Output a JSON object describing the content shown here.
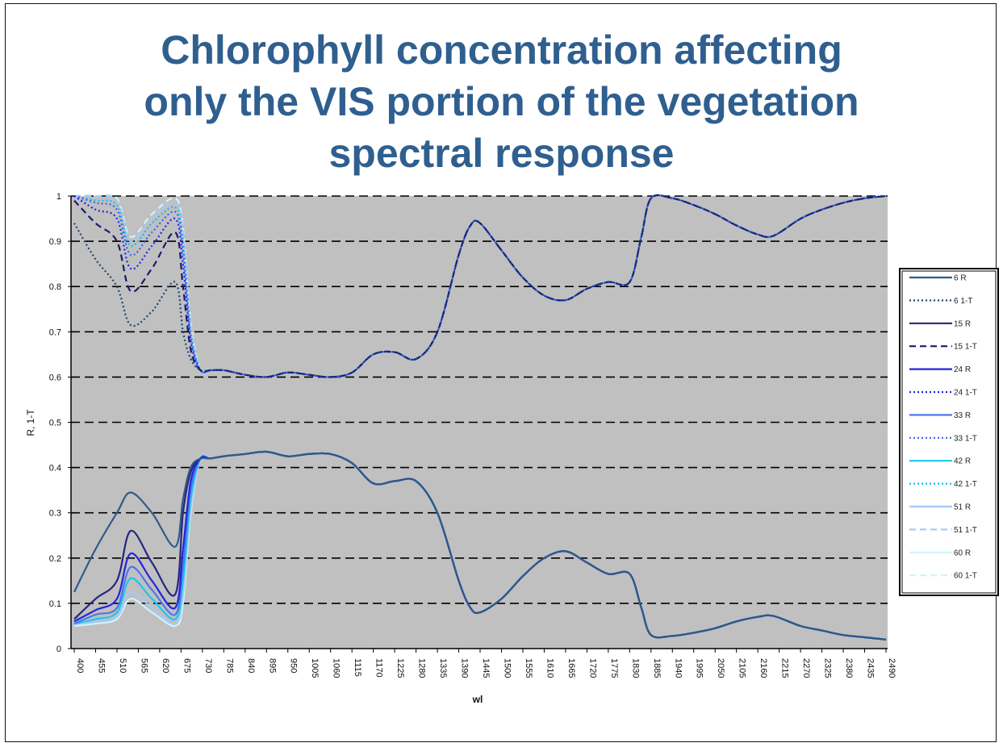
{
  "title_lines": [
    "Chlorophyll concentration affecting",
    "only the VIS portion of the vegetation",
    "spectral response"
  ],
  "chart_data": {
    "type": "line",
    "title": "Chlorophyll concentration affecting only the VIS portion of the vegetation spectral response",
    "xlabel": "wl",
    "ylabel": "R, 1-T",
    "xlim": [
      400,
      2490
    ],
    "ylim": [
      0,
      1
    ],
    "yticks": [
      "0",
      "0.1",
      "0.2",
      "0.3",
      "0.4",
      "0.5",
      "0.6",
      "0.7",
      "0.8",
      "0.9",
      "1"
    ],
    "xticks": [
      "400",
      "455",
      "510",
      "565",
      "620",
      "675",
      "730",
      "785",
      "840",
      "895",
      "950",
      "1005",
      "1060",
      "1115",
      "1170",
      "1225",
      "1280",
      "1335",
      "1390",
      "1445",
      "1500",
      "1555",
      "1610",
      "1665",
      "1720",
      "1775",
      "1830",
      "1885",
      "1940",
      "1995",
      "2050",
      "2105",
      "2160",
      "2215",
      "2270",
      "2325",
      "2380",
      "2435",
      "2490"
    ],
    "grid": "horizontal dashed",
    "legend_position": "right",
    "vis_x": [
      400,
      455,
      510,
      545,
      600,
      660,
      680,
      700,
      725
    ],
    "tail_x": [
      750,
      785,
      840,
      895,
      950,
      1005,
      1060,
      1115,
      1170,
      1225,
      1280,
      1335,
      1390,
      1420,
      1445,
      1500,
      1555,
      1610,
      1665,
      1720,
      1775,
      1830,
      1860,
      1885,
      1940,
      1995,
      2050,
      2105,
      2160,
      2200,
      2270,
      2325,
      2380,
      2435,
      2490
    ],
    "tail_R": [
      0.42,
      0.425,
      0.43,
      0.435,
      0.425,
      0.43,
      0.43,
      0.41,
      0.365,
      0.37,
      0.37,
      0.3,
      0.15,
      0.09,
      0.08,
      0.11,
      0.16,
      0.2,
      0.215,
      0.19,
      0.165,
      0.165,
      0.09,
      0.03,
      0.028,
      0.035,
      0.045,
      0.06,
      0.07,
      0.072,
      0.05,
      0.04,
      0.03,
      0.025,
      0.02
    ],
    "tail_1T": [
      0.615,
      0.615,
      0.605,
      0.6,
      0.61,
      0.605,
      0.6,
      0.61,
      0.65,
      0.655,
      0.64,
      0.7,
      0.87,
      0.935,
      0.94,
      0.88,
      0.82,
      0.78,
      0.77,
      0.795,
      0.81,
      0.81,
      0.91,
      0.995,
      0.995,
      0.98,
      0.96,
      0.935,
      0.915,
      0.912,
      0.95,
      0.97,
      0.985,
      0.995,
      1.0
    ],
    "series": [
      {
        "name": "6 R",
        "kind": "R",
        "color": "#2f5a8a",
        "dash": "solid",
        "vis": [
          0.125,
          0.22,
          0.3,
          0.345,
          0.3,
          0.225,
          0.33,
          0.4,
          0.42
        ]
      },
      {
        "name": "6 1-T",
        "kind": "T",
        "color": "#1d4670",
        "dash": "dotted",
        "vis": [
          0.94,
          0.86,
          0.8,
          0.715,
          0.745,
          0.81,
          0.7,
          0.64,
          0.615
        ]
      },
      {
        "name": "15 R",
        "kind": "R",
        "color": "#26267e",
        "dash": "solid",
        "vis": [
          0.065,
          0.11,
          0.15,
          0.26,
          0.19,
          0.12,
          0.3,
          0.39,
          0.42
        ]
      },
      {
        "name": "15 1-T",
        "kind": "T",
        "color": "#1a1a70",
        "dash": "dashed",
        "vis": [
          0.99,
          0.94,
          0.9,
          0.79,
          0.84,
          0.92,
          0.8,
          0.66,
          0.615
        ]
      },
      {
        "name": "24 R",
        "kind": "R",
        "color": "#2323e0",
        "dash": "solid",
        "vis": [
          0.06,
          0.085,
          0.11,
          0.21,
          0.15,
          0.09,
          0.22,
          0.37,
          0.42
        ]
      },
      {
        "name": "24 1-T",
        "kind": "T",
        "color": "#2323e8",
        "dash": "dotted",
        "vis": [
          1.0,
          0.97,
          0.95,
          0.84,
          0.89,
          0.95,
          0.85,
          0.68,
          0.615
        ]
      },
      {
        "name": "33 R",
        "kind": "R",
        "color": "#4a78e8",
        "dash": "solid",
        "vis": [
          0.055,
          0.075,
          0.09,
          0.18,
          0.13,
          0.075,
          0.18,
          0.35,
          0.42
        ]
      },
      {
        "name": "33 1-T",
        "kind": "T",
        "color": "#3a66f0",
        "dash": "dotted",
        "vis": [
          1.0,
          0.985,
          0.97,
          0.87,
          0.92,
          0.965,
          0.88,
          0.69,
          0.615
        ]
      },
      {
        "name": "42 R",
        "kind": "R",
        "color": "#1cc6f0",
        "dash": "solid",
        "vis": [
          0.055,
          0.065,
          0.08,
          0.155,
          0.11,
          0.065,
          0.15,
          0.33,
          0.42
        ]
      },
      {
        "name": "42 1-T",
        "kind": "T",
        "color": "#10c0f0",
        "dash": "dotted",
        "vis": [
          1.0,
          0.99,
          0.98,
          0.89,
          0.94,
          0.975,
          0.9,
          0.7,
          0.615
        ]
      },
      {
        "name": "51 R",
        "kind": "R",
        "color": "#a6c8f8",
        "dash": "solid",
        "vis": [
          0.055,
          0.06,
          0.07,
          0.125,
          0.09,
          0.055,
          0.12,
          0.31,
          0.42
        ]
      },
      {
        "name": "51 1-T",
        "kind": "T",
        "color": "#a6c8f8",
        "dash": "dashed",
        "vis": [
          1.0,
          1.0,
          0.99,
          0.9,
          0.95,
          0.985,
          0.92,
          0.71,
          0.615
        ]
      },
      {
        "name": "60 R",
        "kind": "R",
        "color": "#cdf4fb",
        "dash": "solid",
        "vis": [
          0.05,
          0.055,
          0.065,
          0.11,
          0.08,
          0.05,
          0.1,
          0.3,
          0.42
        ]
      },
      {
        "name": "60 1-T",
        "kind": "T",
        "color": "#cdf4fb",
        "dash": "dashed",
        "vis": [
          1.0,
          1.0,
          0.995,
          0.91,
          0.96,
          0.995,
          0.93,
          0.72,
          0.615
        ]
      }
    ]
  }
}
